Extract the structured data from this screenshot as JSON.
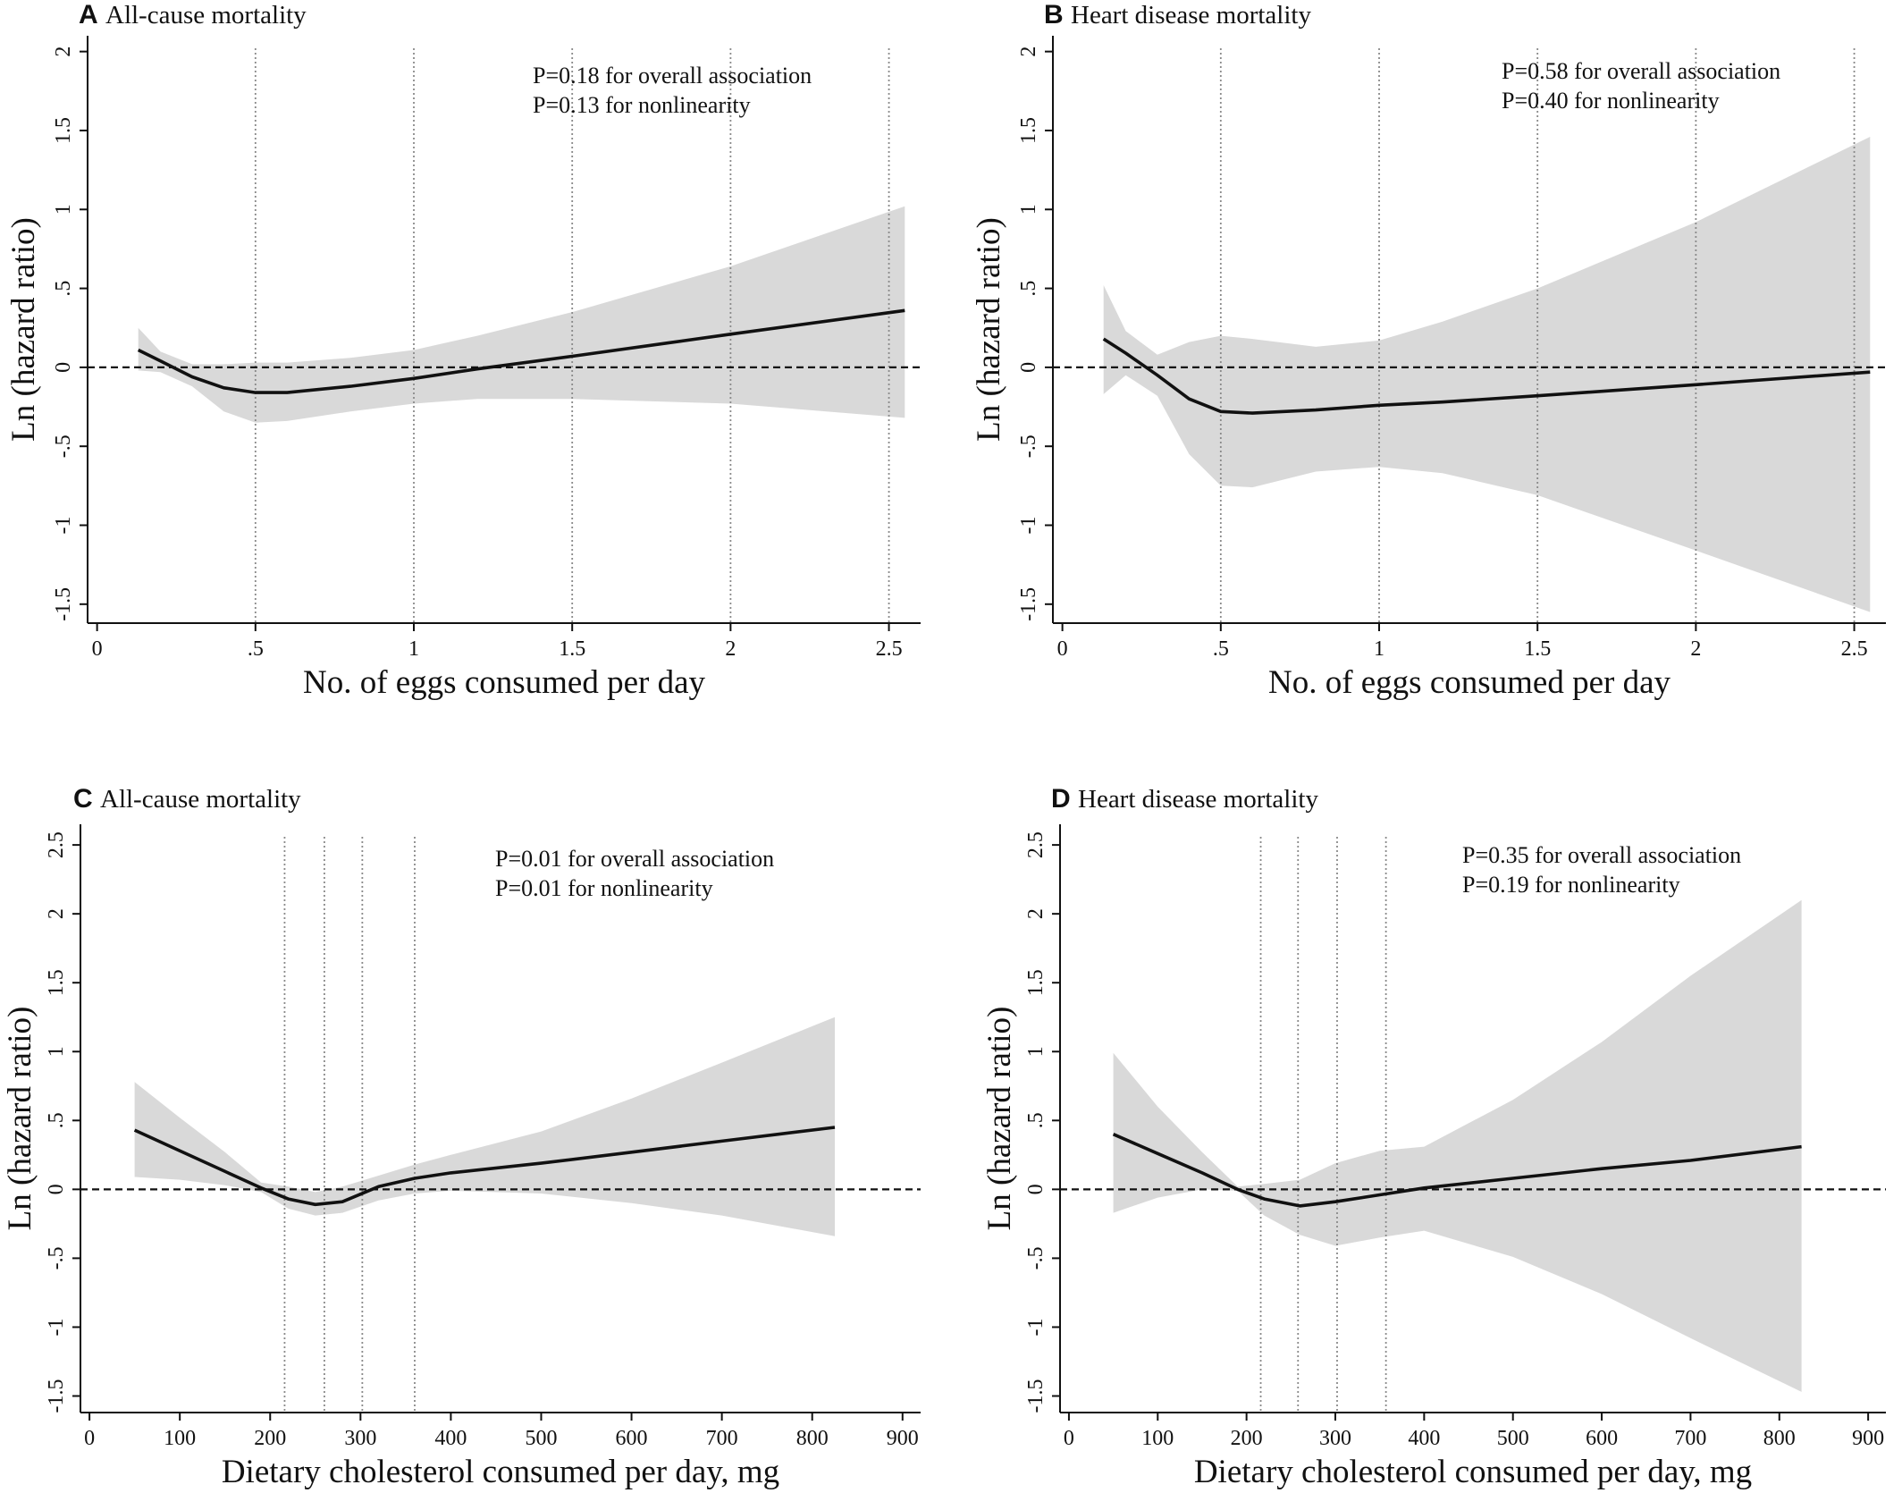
{
  "chart_data": [
    {
      "panel_letter": "A",
      "title": "All-cause mortality",
      "type": "line",
      "xlabel": "No. of eggs consumed per day",
      "ylabel": "Ln (hazard ratio)",
      "xlim": [
        -0.03,
        2.6
      ],
      "ylim": [
        -1.62,
        2.1
      ],
      "xticks": [
        0,
        0.5,
        1,
        1.5,
        2,
        2.5
      ],
      "xtick_labels": [
        "0",
        ".5",
        "1",
        "1.5",
        "2",
        "2.5"
      ],
      "yticks": [
        -1.5,
        -1,
        -0.5,
        0,
        0.5,
        1,
        1.5,
        2
      ],
      "ytick_labels": [
        "-1.5",
        "-1",
        "-.5",
        "0",
        ".5",
        "1",
        "1.5",
        "2"
      ],
      "reference_lines_x": [
        0.5,
        1,
        1.5,
        2,
        2.5
      ],
      "reference_line_y": 0,
      "annotations": [
        "P=0.18 for overall association",
        "P=0.13 for nonlinearity"
      ],
      "series": [
        {
          "x": [
            0.13,
            0.2,
            0.3,
            0.4,
            0.5,
            0.6,
            0.8,
            1.0,
            1.2,
            1.5,
            2.0,
            2.55
          ],
          "y": [
            0.11,
            0.04,
            -0.06,
            -0.13,
            -0.16,
            -0.16,
            -0.12,
            -0.07,
            -0.01,
            0.07,
            0.21,
            0.36
          ],
          "lower": [
            -0.02,
            -0.03,
            -0.12,
            -0.28,
            -0.35,
            -0.34,
            -0.28,
            -0.23,
            -0.2,
            -0.2,
            -0.23,
            -0.32
          ],
          "upper": [
            0.25,
            0.1,
            0.02,
            0.02,
            0.03,
            0.03,
            0.06,
            0.11,
            0.2,
            0.35,
            0.64,
            1.02
          ]
        }
      ]
    },
    {
      "panel_letter": "B",
      "title": "Heart disease mortality",
      "type": "line",
      "xlabel": "No. of eggs consumed per day",
      "ylabel": "Ln (hazard ratio)",
      "xlim": [
        -0.03,
        2.6
      ],
      "ylim": [
        -1.62,
        2.1
      ],
      "xticks": [
        0,
        0.5,
        1,
        1.5,
        2,
        2.5
      ],
      "xtick_labels": [
        "0",
        ".5",
        "1",
        "1.5",
        "2",
        "2.5"
      ],
      "yticks": [
        -1.5,
        -1,
        -0.5,
        0,
        0.5,
        1,
        1.5,
        2
      ],
      "ytick_labels": [
        "-1.5",
        "-1",
        "-.5",
        "0",
        ".5",
        "1",
        "1.5",
        "2"
      ],
      "reference_lines_x": [
        0.5,
        1,
        1.5,
        2,
        2.5
      ],
      "reference_line_y": 0,
      "annotations": [
        "P=0.58 for overall association",
        "P=0.40 for nonlinearity"
      ],
      "series": [
        {
          "x": [
            0.13,
            0.2,
            0.3,
            0.4,
            0.5,
            0.6,
            0.8,
            1.0,
            1.2,
            1.5,
            2.0,
            2.55
          ],
          "y": [
            0.18,
            0.09,
            -0.05,
            -0.2,
            -0.28,
            -0.29,
            -0.27,
            -0.24,
            -0.22,
            -0.18,
            -0.11,
            -0.03
          ],
          "lower": [
            -0.17,
            -0.05,
            -0.18,
            -0.55,
            -0.75,
            -0.76,
            -0.66,
            -0.63,
            -0.67,
            -0.81,
            -1.16,
            -1.55
          ],
          "upper": [
            0.52,
            0.23,
            0.08,
            0.16,
            0.2,
            0.18,
            0.13,
            0.17,
            0.29,
            0.5,
            0.92,
            1.46
          ]
        }
      ]
    },
    {
      "panel_letter": "C",
      "title": "All-cause mortality",
      "type": "line",
      "xlabel": "Dietary cholesterol consumed per day, mg",
      "ylabel": "Ln (hazard ratio)",
      "xlim": [
        -10,
        920
      ],
      "ylim": [
        -1.62,
        2.65
      ],
      "xticks": [
        0,
        100,
        200,
        300,
        400,
        500,
        600,
        700,
        800,
        900
      ],
      "xtick_labels": [
        "0",
        "100",
        "200",
        "300",
        "400",
        "500",
        "600",
        "700",
        "800",
        "900"
      ],
      "yticks": [
        -1.5,
        -1,
        -0.5,
        0,
        0.5,
        1,
        1.5,
        2,
        2.5
      ],
      "ytick_labels": [
        "-1.5",
        "-1",
        "-.5",
        "0",
        ".5",
        "1",
        "1.5",
        "2",
        "2.5"
      ],
      "reference_lines_x": [
        216,
        260,
        302,
        360
      ],
      "reference_line_y": 0,
      "annotations": [
        "P=0.01 for overall association",
        "P=0.01 for nonlinearity"
      ],
      "series": [
        {
          "x": [
            50,
            100,
            150,
            190,
            220,
            250,
            280,
            320,
            360,
            400,
            500,
            600,
            700,
            825
          ],
          "y": [
            0.43,
            0.28,
            0.13,
            0.01,
            -0.07,
            -0.11,
            -0.09,
            0.02,
            0.08,
            0.12,
            0.19,
            0.27,
            0.35,
            0.45
          ],
          "lower": [
            0.09,
            0.07,
            0.03,
            -0.02,
            -0.14,
            -0.19,
            -0.17,
            -0.08,
            -0.03,
            -0.01,
            -0.03,
            -0.1,
            -0.19,
            -0.34
          ],
          "upper": [
            0.78,
            0.52,
            0.27,
            0.05,
            0.02,
            -0.02,
            0.02,
            0.1,
            0.18,
            0.25,
            0.42,
            0.66,
            0.92,
            1.25
          ]
        }
      ]
    },
    {
      "panel_letter": "D",
      "title": "Heart disease mortality",
      "type": "line",
      "xlabel": "Dietary cholesterol consumed per day, mg",
      "ylabel": "Ln (hazard ratio)",
      "xlim": [
        -10,
        920
      ],
      "ylim": [
        -1.62,
        2.65
      ],
      "xticks": [
        0,
        100,
        200,
        300,
        400,
        500,
        600,
        700,
        800,
        900
      ],
      "xtick_labels": [
        "0",
        "100",
        "200",
        "300",
        "400",
        "500",
        "600",
        "700",
        "800",
        "900"
      ],
      "yticks": [
        -1.5,
        -1,
        -0.5,
        0,
        0.5,
        1,
        1.5,
        2,
        2.5
      ],
      "ytick_labels": [
        "-1.5",
        "-1",
        "-.5",
        "0",
        ".5",
        "1",
        "1.5",
        "2",
        "2.5"
      ],
      "reference_lines_x": [
        216,
        258,
        302,
        357
      ],
      "reference_line_y": 0,
      "annotations": [
        "P=0.35 for overall association",
        "P=0.19 for nonlinearity"
      ],
      "series": [
        {
          "x": [
            50,
            100,
            150,
            190,
            220,
            260,
            300,
            350,
            400,
            500,
            600,
            700,
            825
          ],
          "y": [
            0.4,
            0.26,
            0.12,
            0.0,
            -0.07,
            -0.12,
            -0.09,
            -0.04,
            0.01,
            0.08,
            0.15,
            0.21,
            0.31
          ],
          "lower": [
            -0.17,
            -0.06,
            0.0,
            -0.01,
            -0.19,
            -0.33,
            -0.41,
            -0.35,
            -0.3,
            -0.49,
            -0.76,
            -1.08,
            -1.47
          ],
          "upper": [
            0.99,
            0.6,
            0.27,
            0.02,
            0.04,
            0.07,
            0.19,
            0.28,
            0.31,
            0.65,
            1.07,
            1.55,
            2.1
          ]
        }
      ]
    }
  ]
}
